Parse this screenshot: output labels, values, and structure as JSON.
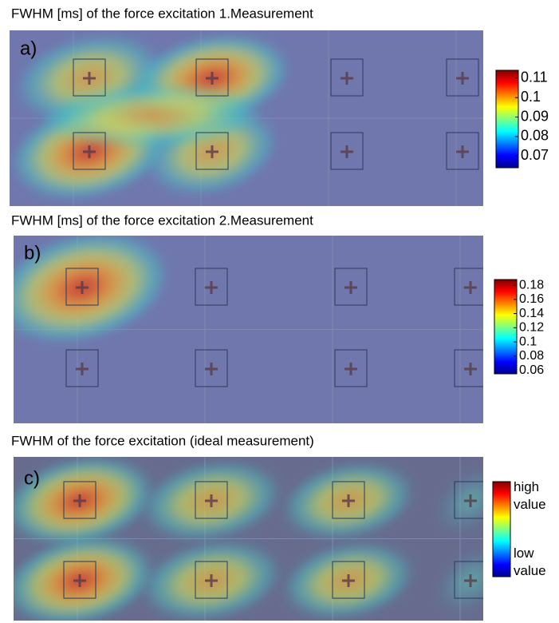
{
  "chart_data": [
    {
      "type": "heatmap",
      "title": "FWHM [ms] of the force excitation 1.Measurement",
      "panel": "a)",
      "clim": [
        0.064,
        0.114
      ],
      "cticks": [
        0.11,
        0.1,
        0.09,
        0.08,
        0.07
      ]
    },
    {
      "type": "heatmap",
      "title": "FWHM [ms] of the force excitation 2.Measurement",
      "panel": "b)",
      "clim": [
        0.055,
        0.188
      ],
      "cticks": [
        0.18,
        0.16,
        0.14,
        0.12,
        0.1,
        0.08,
        0.06
      ]
    },
    {
      "type": "heatmap",
      "title": "FWHM of the force excitation (ideal measurement)",
      "panel": "c)",
      "clabels": [
        "high value",
        "low value"
      ]
    }
  ]
}
